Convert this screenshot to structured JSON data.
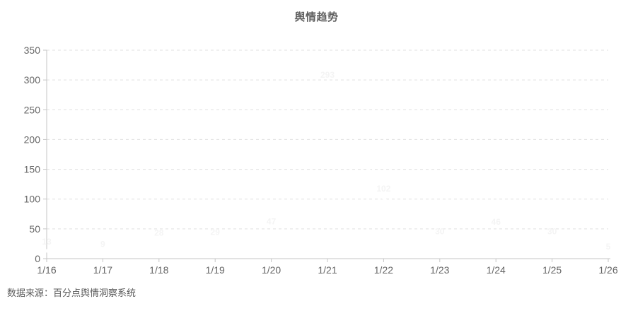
{
  "title": "舆情趋势",
  "footer": "数据来源：百分点舆情洞察系统",
  "chart_data": {
    "type": "line",
    "title": "舆情趋势",
    "x": [
      "1/16",
      "1/17",
      "1/18",
      "1/19",
      "1/20",
      "1/21",
      "1/22",
      "1/23",
      "1/24",
      "1/25",
      "1/26"
    ],
    "series": [
      {
        "name": "舆情趋势",
        "values": [
          13,
          9,
          28,
          29,
          47,
          293,
          102,
          30,
          46,
          30,
          5
        ],
        "line_color": "#ffffff",
        "label_color": "#f4f4f4",
        "labels_visible": true
      }
    ],
    "xlabel": "",
    "ylabel": "",
    "ylim": [
      0,
      350
    ],
    "ytick_interval": 50,
    "ytick_labels": [
      "0",
      "50",
      "100",
      "150",
      "200",
      "250",
      "300",
      "350"
    ],
    "grid": "horizontal-dashed",
    "legend_position": "none",
    "colors": {
      "axis_line": "#c6c6c6",
      "grid_line": "#e0e0e0",
      "axis_text": "#666666",
      "title_text": "#606060",
      "footer_text": "#595959",
      "background": "#ffffff"
    },
    "annotation": "数据来源：百分点舆情洞察系统"
  }
}
